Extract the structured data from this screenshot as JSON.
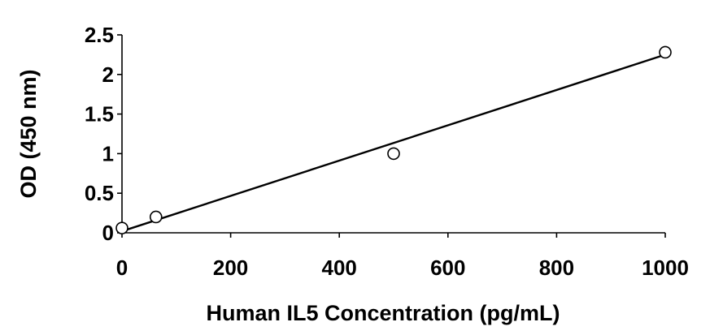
{
  "chart_data": {
    "type": "scatter",
    "title": "",
    "xlabel": "Human IL5 Concentration (pg/mL)",
    "ylabel": "OD (450 nm)",
    "xlim": [
      0,
      1000
    ],
    "ylim": [
      0,
      2.5
    ],
    "xticks": [
      0,
      200,
      400,
      600,
      800,
      1000
    ],
    "yticks": [
      0,
      0.5,
      1,
      1.5,
      2,
      2.5
    ],
    "xtick_labels": [
      "0",
      "200",
      "400",
      "600",
      "800",
      "1000"
    ],
    "ytick_labels": [
      "0",
      "0.5",
      "1",
      "1.5",
      "2",
      "2.5"
    ],
    "grid": false,
    "marker": "open-circle",
    "points": [
      {
        "x": 0,
        "y": 0.06
      },
      {
        "x": 62.5,
        "y": 0.2
      },
      {
        "x": 500,
        "y": 1.0
      },
      {
        "x": 1000,
        "y": 2.28
      }
    ],
    "trendline": {
      "type": "linear",
      "x": [
        0,
        1000
      ],
      "y": [
        0.02,
        2.25
      ]
    }
  }
}
